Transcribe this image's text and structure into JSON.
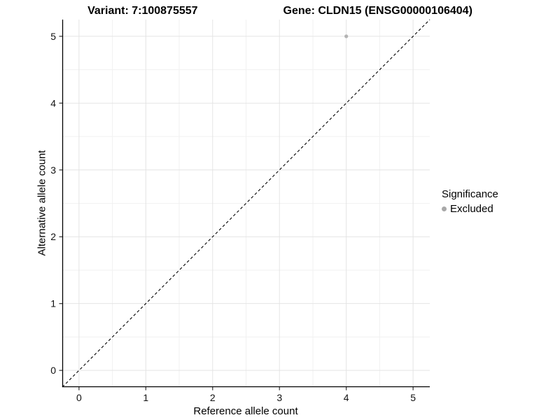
{
  "titles": {
    "left": "Variant: 7:100875557",
    "right": "Gene: CLDN15 (ENSG00000106404)"
  },
  "axes": {
    "x_label": "Reference allele count",
    "y_label": "Alternative allele count"
  },
  "legend": {
    "title": "Significance",
    "entries": [
      {
        "label": "Excluded",
        "color": "#a8a8a8"
      }
    ]
  },
  "colors": {
    "background": "#ffffff",
    "axis_line": "#000000",
    "tick_mark": "#333333",
    "grid_major": "#e4e4e4",
    "grid_minor": "#f1f1f1",
    "reference_line": "#000000",
    "point": "#b3b3b3"
  },
  "chart_data": {
    "type": "scatter",
    "title": "Variant: 7:100875557 | Gene: CLDN15 (ENSG00000106404)",
    "xlabel": "Reference allele count",
    "ylabel": "Alternative allele count",
    "xlim": [
      -0.25,
      5.25
    ],
    "ylim": [
      -0.25,
      5.25
    ],
    "x_ticks": [
      0,
      1,
      2,
      3,
      4,
      5
    ],
    "y_ticks": [
      0,
      1,
      2,
      3,
      4,
      5
    ],
    "x_minor": [
      0.5,
      1.5,
      2.5,
      3.5,
      4.5
    ],
    "y_minor": [
      0.5,
      1.5,
      2.5,
      3.5,
      4.5
    ],
    "grid": true,
    "legend_position": "right",
    "series": [
      {
        "name": "Excluded",
        "color": "#b3b3b3",
        "points": [
          {
            "x": 4,
            "y": 5
          }
        ]
      }
    ],
    "reference_line": {
      "kind": "abline",
      "intercept": 0,
      "slope": 1,
      "style": "dashed",
      "color": "#000000"
    }
  }
}
